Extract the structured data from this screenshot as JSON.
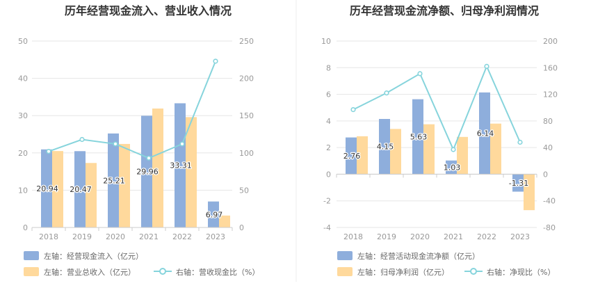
{
  "colors": {
    "bar_primary": "#8eaedc",
    "bar_secondary": "#ffd99c",
    "line": "#86d4dc",
    "grid": "#e6e6e6",
    "axis": "#cccccc",
    "divider": "#eeeeee"
  },
  "chart_data": [
    {
      "type": "bar",
      "title": "历年经营现金流入、营业收入情况",
      "categories": [
        "2018",
        "2019",
        "2020",
        "2021",
        "2022",
        "2023"
      ],
      "y_left": {
        "range": [
          0,
          50
        ],
        "ticks": [
          "0",
          "10",
          "20",
          "30",
          "40",
          "50"
        ]
      },
      "y_right": {
        "range": [
          0,
          250
        ],
        "ticks": [
          "0",
          "50",
          "100",
          "150",
          "200",
          "250"
        ]
      },
      "series": [
        {
          "name": "左轴：经营现金流入（亿元）",
          "kind": "bar",
          "axis": "left",
          "values": [
            20.94,
            20.47,
            25.21,
            29.96,
            33.31,
            6.97
          ],
          "labels": [
            "20.94",
            "20.47",
            "25.21",
            "29.96",
            "33.31",
            "6.97"
          ]
        },
        {
          "name": "左轴：营业总收入（亿元）",
          "kind": "bar",
          "axis": "left",
          "values": [
            20.5,
            17.3,
            22.4,
            31.9,
            29.6,
            3.2
          ]
        },
        {
          "name": "右轴：营收现金比（%）",
          "kind": "line",
          "axis": "right",
          "values": [
            102,
            118,
            112,
            93,
            112,
            223
          ]
        }
      ],
      "legend": {
        "placement": "bottom-left",
        "labels": [
          "左轴：经营现金流入（亿元）",
          "左轴：营业总收入（亿元）",
          "右轴：营收现金比（%）"
        ]
      },
      "grid": true
    },
    {
      "type": "bar",
      "title": "历年经营现金流净额、归母净利润情况",
      "categories": [
        "2018",
        "2019",
        "2020",
        "2021",
        "2022",
        "2023"
      ],
      "y_left": {
        "range": [
          -4,
          10
        ],
        "ticks": [
          "-4",
          "-2",
          "0",
          "2",
          "4",
          "6",
          "8",
          "10"
        ]
      },
      "y_right": {
        "range": [
          -80,
          200
        ],
        "ticks": [
          "-80",
          "-40",
          "0",
          "40",
          "80",
          "120",
          "160",
          "200"
        ]
      },
      "series": [
        {
          "name": "左轴：经营活动现金流净额（亿元）",
          "kind": "bar",
          "axis": "left",
          "values": [
            2.76,
            4.15,
            5.63,
            1.03,
            6.14,
            -1.31
          ],
          "labels": [
            "2.76",
            "4.15",
            "5.63",
            "1.03",
            "6.14",
            "-1.31"
          ]
        },
        {
          "name": "左轴：归母净利润（亿元）",
          "kind": "bar",
          "axis": "left",
          "values": [
            2.85,
            3.4,
            3.75,
            2.8,
            3.8,
            -2.7
          ]
        },
        {
          "name": "右轴：净现比（%）",
          "kind": "line",
          "axis": "right",
          "values": [
            97,
            122,
            151,
            37,
            162,
            48
          ]
        }
      ],
      "legend": {
        "placement": "bottom-left",
        "labels": [
          "左轴：经营活动现金流净额（亿元）",
          "左轴：归母净利润（亿元）",
          "右轴：净现比（%）"
        ]
      },
      "grid": true
    }
  ]
}
